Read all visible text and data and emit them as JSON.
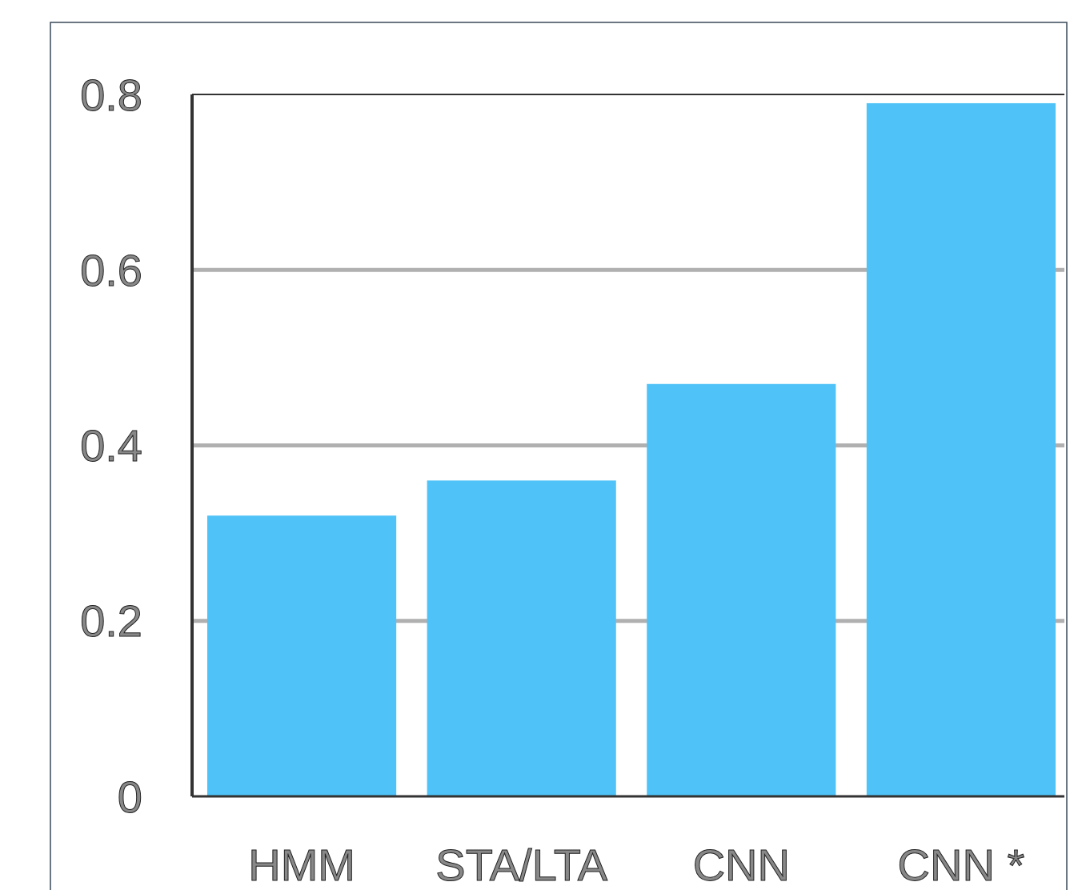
{
  "chart_data": {
    "type": "bar",
    "categories": [
      "HMM",
      "STA/LTA",
      "CNN",
      "CNN *"
    ],
    "values": [
      0.32,
      0.36,
      0.47,
      0.79
    ],
    "color": "#4fc3f7",
    "ylim": [
      0,
      0.8
    ],
    "yticks": [
      0,
      0.2,
      0.4,
      0.6,
      0.8
    ],
    "grid": "y"
  }
}
